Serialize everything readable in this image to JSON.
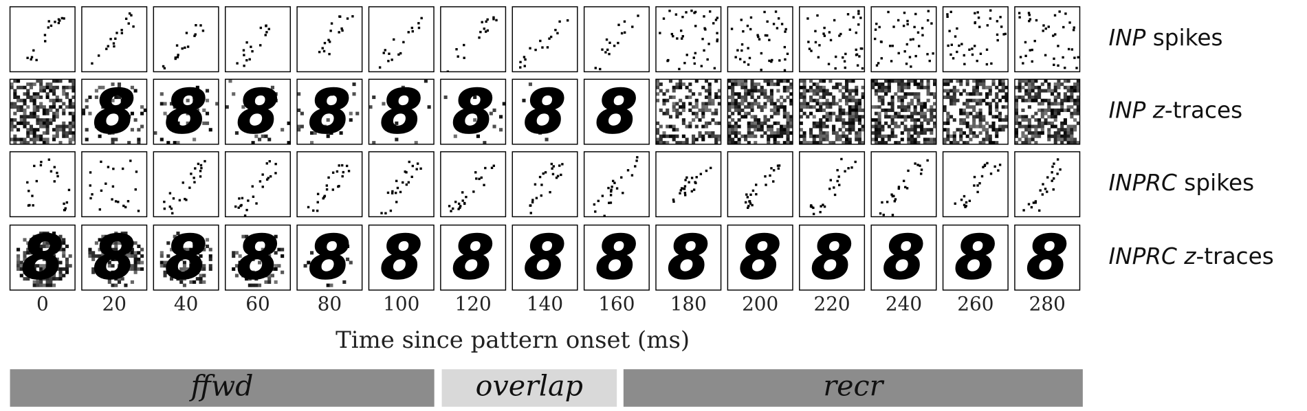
{
  "rows": [
    {
      "parts": [
        "INP",
        " spikes"
      ]
    },
    {
      "parts": [
        "INP",
        " ",
        "z",
        "-traces"
      ]
    },
    {
      "parts": [
        "INPRC",
        " spikes"
      ]
    },
    {
      "parts": [
        "INPRC",
        " ",
        "z",
        "-traces"
      ]
    }
  ],
  "x_axis": {
    "ticks": [
      0,
      20,
      40,
      60,
      80,
      100,
      120,
      140,
      160,
      180,
      200,
      220,
      240,
      260,
      280
    ],
    "label": "Time since pattern onset (ms)"
  },
  "phases": [
    {
      "label": "ffwd",
      "color": "#8c8c8c"
    },
    {
      "label": "overlap",
      "color": "#d9d9d9"
    },
    {
      "label": "recr",
      "color": "#8c8c8c"
    }
  ]
}
